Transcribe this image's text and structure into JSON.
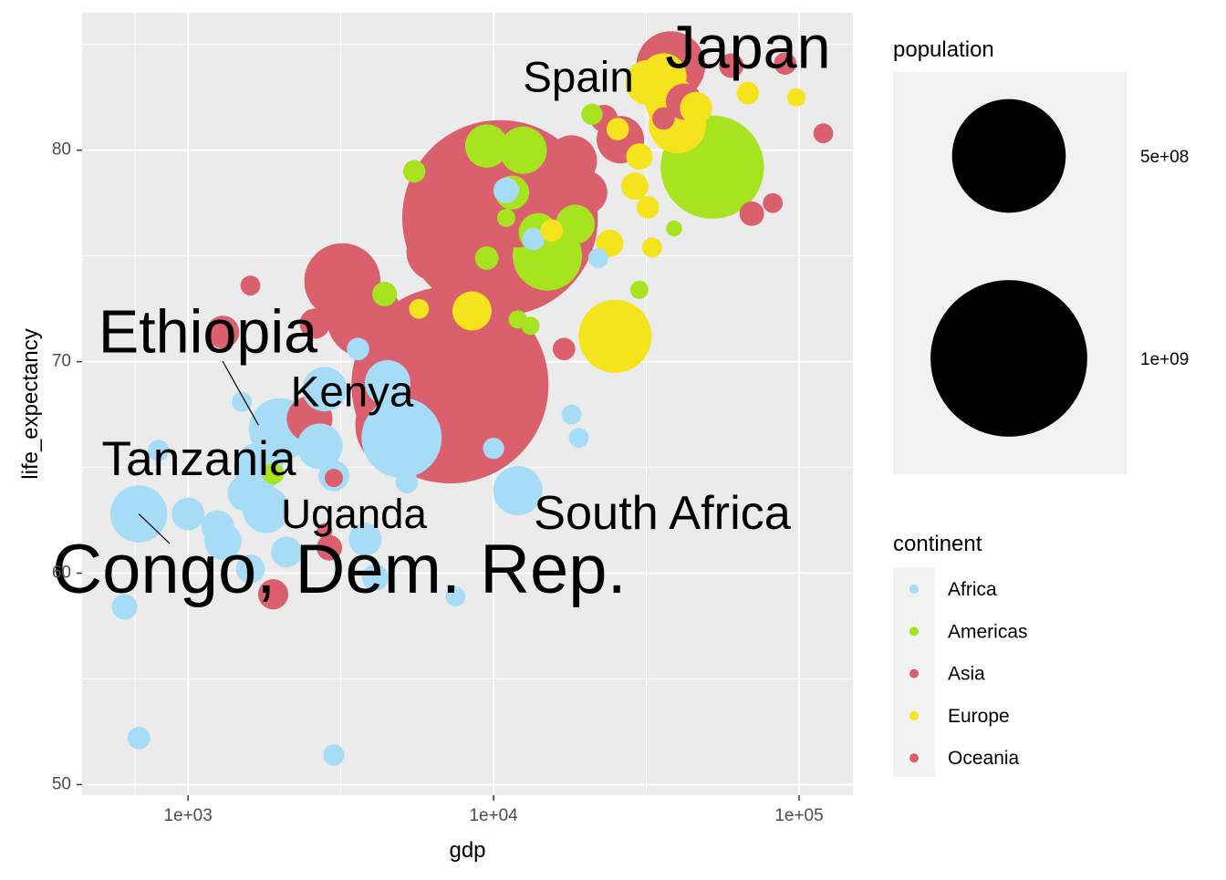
{
  "chart_data": {
    "type": "scatter",
    "title": "",
    "xlabel": "gdp",
    "ylabel": "life_expectancy",
    "x_scale": "log10",
    "xlim": [
      450,
      150000
    ],
    "ylim": [
      49.5,
      86.5
    ],
    "x_ticks": [
      {
        "value": 1000,
        "label": "1e+03"
      },
      {
        "value": 10000,
        "label": "1e+04"
      },
      {
        "value": 100000,
        "label": "1e+05"
      }
    ],
    "y_ticks": [
      {
        "value": 50,
        "label": "50"
      },
      {
        "value": 60,
        "label": "60"
      },
      {
        "value": 70,
        "label": "70"
      },
      {
        "value": 80,
        "label": "80"
      }
    ],
    "grid": true,
    "legend_position": "right",
    "colors": {
      "Africa": "#a6dcf5",
      "Americas": "#a7e41f",
      "Asia": "#d9606c",
      "Europe": "#f4e31d",
      "Oceania": "#d9606c"
    },
    "size_legend": {
      "title": "population",
      "entries": [
        {
          "population": 500000000,
          "label": "5e+08"
        },
        {
          "population": 1000000000,
          "label": "1e+09"
        }
      ]
    },
    "color_legend": {
      "title": "continent",
      "entries": [
        "Africa",
        "Americas",
        "Asia",
        "Europe",
        "Oceania"
      ]
    },
    "points": [
      {
        "continent": "Asia",
        "gdp": 7200,
        "life": 68.9,
        "pop": 1300000000
      },
      {
        "continent": "Asia",
        "gdp": 10500,
        "life": 76.8,
        "pop": 1280000000
      },
      {
        "continent": "Americas",
        "gdp": 52000,
        "life": 79.2,
        "pop": 320000000
      },
      {
        "continent": "Asia",
        "gdp": 5000,
        "life": 67.0,
        "pop": 250000000
      },
      {
        "continent": "Africa",
        "gdp": 5000,
        "life": 66.4,
        "pop": 180000000
      },
      {
        "continent": "Asia",
        "gdp": 3200,
        "life": 73.8,
        "pop": 160000000
      },
      {
        "continent": "Asia",
        "gdp": 38000,
        "life": 84.0,
        "pop": 126000000
      },
      {
        "continent": "Europe",
        "gdp": 25000,
        "life": 71.2,
        "pop": 145000000
      },
      {
        "continent": "Asia",
        "gdp": 3800,
        "life": 72.0,
        "pop": 160000000
      },
      {
        "continent": "Africa",
        "gdp": 2000,
        "life": 66.8,
        "pop": 99000000
      },
      {
        "continent": "Americas",
        "gdp": 15000,
        "life": 75.0,
        "pop": 128000000
      },
      {
        "continent": "Africa",
        "gdp": 690,
        "life": 62.8,
        "pop": 80000000
      },
      {
        "continent": "Asia",
        "gdp": 6500,
        "life": 75.2,
        "pop": 90000000
      },
      {
        "continent": "Asia",
        "gdp": 6000,
        "life": 70.5,
        "pop": 100000000
      },
      {
        "continent": "Europe",
        "gdp": 40000,
        "life": 81.2,
        "pop": 80000000
      },
      {
        "continent": "Africa",
        "gdp": 12000,
        "life": 63.9,
        "pop": 55000000
      },
      {
        "continent": "Americas",
        "gdp": 12500,
        "life": 80.0,
        "pop": 50000000
      },
      {
        "continent": "Europe",
        "gdp": 36000,
        "life": 83.5,
        "pop": 46000000
      },
      {
        "continent": "Asia",
        "gdp": 18000,
        "life": 79.5,
        "pop": 60000000
      },
      {
        "continent": "Asia",
        "gdp": 26000,
        "life": 80.5,
        "pop": 50000000
      },
      {
        "continent": "Asia",
        "gdp": 2500,
        "life": 67.3,
        "pop": 45000000
      },
      {
        "continent": "Africa",
        "gdp": 2800,
        "life": 68.7,
        "pop": 42000000
      },
      {
        "continent": "Africa",
        "gdp": 4500,
        "life": 69.0,
        "pop": 45000000
      },
      {
        "continent": "Asia",
        "gdp": 12000,
        "life": 76.5,
        "pop": 47000000
      },
      {
        "continent": "Africa",
        "gdp": 1800,
        "life": 63.0,
        "pop": 48000000
      },
      {
        "continent": "Africa",
        "gdp": 1700,
        "life": 65.0,
        "pop": 55000000
      },
      {
        "continent": "Africa",
        "gdp": 2700,
        "life": 66.0,
        "pop": 45000000
      },
      {
        "continent": "Asia",
        "gdp": 9000,
        "life": 79.2,
        "pop": 40000000
      },
      {
        "continent": "Europe",
        "gdp": 38000,
        "life": 82.3,
        "pop": 60000000
      },
      {
        "continent": "Europe",
        "gdp": 32000,
        "life": 83.2,
        "pop": 44000000
      },
      {
        "continent": "Americas",
        "gdp": 9500,
        "life": 80.2,
        "pop": 39000000
      },
      {
        "continent": "Americas",
        "gdp": 14000,
        "life": 76.1,
        "pop": 30000000
      },
      {
        "continent": "Americas",
        "gdp": 18500,
        "life": 76.5,
        "pop": 30000000
      },
      {
        "continent": "Americas",
        "gdp": 11500,
        "life": 78.0,
        "pop": 20000000
      },
      {
        "continent": "Europe",
        "gdp": 8500,
        "life": 72.4,
        "pop": 30000000
      },
      {
        "continent": "Asia",
        "gdp": 20000,
        "life": 78.0,
        "pop": 40000000
      },
      {
        "continent": "Asia",
        "gdp": 1300,
        "life": 71.4,
        "pop": 18000000
      },
      {
        "continent": "Asia",
        "gdp": 2600,
        "life": 71.8,
        "pop": 14000000
      },
      {
        "continent": "Africa",
        "gdp": 1300,
        "life": 61.5,
        "pop": 26000000
      },
      {
        "continent": "Africa",
        "gdp": 1000,
        "life": 62.8,
        "pop": 18000000
      },
      {
        "continent": "Africa",
        "gdp": 1250,
        "life": 62.2,
        "pop": 18000000
      },
      {
        "continent": "Africa",
        "gdp": 1550,
        "life": 63.8,
        "pop": 26000000
      },
      {
        "continent": "Africa",
        "gdp": 2100,
        "life": 61.0,
        "pop": 15000000
      },
      {
        "continent": "Asia",
        "gdp": 1900,
        "life": 59.0,
        "pop": 14000000
      },
      {
        "continent": "Africa",
        "gdp": 3800,
        "life": 61.6,
        "pop": 18000000
      },
      {
        "continent": "Africa",
        "gdp": 3000,
        "life": 64.6,
        "pop": 15000000
      },
      {
        "continent": "Asia",
        "gdp": 2900,
        "life": 61.2,
        "pop": 8000000
      },
      {
        "continent": "Africa",
        "gdp": 1600,
        "life": 60.2,
        "pop": 12000000
      },
      {
        "continent": "Africa",
        "gdp": 620,
        "life": 58.4,
        "pop": 8000000
      },
      {
        "continent": "Africa",
        "gdp": 690,
        "life": 52.2,
        "pop": 5000000
      },
      {
        "continent": "Africa",
        "gdp": 3000,
        "life": 51.4,
        "pop": 4000000
      },
      {
        "continent": "Africa",
        "gdp": 7500,
        "life": 58.9,
        "pop": 3000000
      },
      {
        "continent": "Africa",
        "gdp": 5200,
        "life": 64.3,
        "pop": 5000000
      },
      {
        "continent": "Africa",
        "gdp": 10000,
        "life": 65.9,
        "pop": 4000000
      },
      {
        "continent": "Africa",
        "gdp": 4100,
        "life": 59.8,
        "pop": 9000000
      },
      {
        "continent": "Africa",
        "gdp": 3600,
        "life": 70.6,
        "pop": 5000000
      },
      {
        "continent": "Africa",
        "gdp": 18000,
        "life": 67.5,
        "pop": 3000000
      },
      {
        "continent": "Africa",
        "gdp": 19000,
        "life": 66.4,
        "pop": 3000000
      },
      {
        "continent": "Africa",
        "gdp": 800,
        "life": 65.8,
        "pop": 4000000
      },
      {
        "continent": "Africa",
        "gdp": 1500,
        "life": 68.1,
        "pop": 3000000
      },
      {
        "continent": "Africa",
        "gdp": 11000,
        "life": 78.1,
        "pop": 8000000
      },
      {
        "continent": "Africa",
        "gdp": 13500,
        "life": 75.8,
        "pop": 5000000
      },
      {
        "continent": "Africa",
        "gdp": 22000,
        "life": 74.9,
        "pop": 3000000
      },
      {
        "continent": "Americas",
        "gdp": 5500,
        "life": 79.0,
        "pop": 5000000
      },
      {
        "continent": "Americas",
        "gdp": 4400,
        "life": 73.2,
        "pop": 7000000
      },
      {
        "continent": "Americas",
        "gdp": 9500,
        "life": 74.9,
        "pop": 6000000
      },
      {
        "continent": "Americas",
        "gdp": 11000,
        "life": 76.8,
        "pop": 2000000
      },
      {
        "continent": "Americas",
        "gdp": 12000,
        "life": 72.0,
        "pop": 2000000
      },
      {
        "continent": "Americas",
        "gdp": 13200,
        "life": 71.7,
        "pop": 2000000
      },
      {
        "continent": "Americas",
        "gdp": 30000,
        "life": 73.4,
        "pop": 2000000
      },
      {
        "continent": "Americas",
        "gdp": 21000,
        "life": 81.7,
        "pop": 4000000
      },
      {
        "continent": "Americas",
        "gdp": 39000,
        "life": 76.3,
        "pop": 1000000
      },
      {
        "continent": "Americas",
        "gdp": 1900,
        "life": 64.7,
        "pop": 4000000
      },
      {
        "continent": "Asia",
        "gdp": 1600,
        "life": 73.6,
        "pop": 3000000
      },
      {
        "continent": "Asia",
        "gdp": 17000,
        "life": 70.6,
        "pop": 5000000
      },
      {
        "continent": "Asia",
        "gdp": 120000,
        "life": 80.8,
        "pop": 3000000
      },
      {
        "continent": "Asia",
        "gdp": 82000,
        "life": 77.5,
        "pop": 3000000
      },
      {
        "continent": "Asia",
        "gdp": 70000,
        "life": 77.0,
        "pop": 7000000
      },
      {
        "continent": "Asia",
        "gdp": 60000,
        "life": 84.0,
        "pop": 7000000
      },
      {
        "continent": "Asia",
        "gdp": 90000,
        "life": 84.1,
        "pop": 5000000
      },
      {
        "continent": "Asia",
        "gdp": 3000,
        "life": 64.5,
        "pop": 2000000
      },
      {
        "continent": "Asia",
        "gdp": 23000,
        "life": 81.5,
        "pop": 10000000
      },
      {
        "continent": "Europe",
        "gdp": 98000,
        "life": 82.5,
        "pop": 2000000
      },
      {
        "continent": "Europe",
        "gdp": 68000,
        "life": 82.7,
        "pop": 5000000
      },
      {
        "continent": "Europe",
        "gdp": 30000,
        "life": 79.7,
        "pop": 9000000
      },
      {
        "continent": "Europe",
        "gdp": 24000,
        "life": 75.6,
        "pop": 10000000
      },
      {
        "continent": "Europe",
        "gdp": 32000,
        "life": 77.3,
        "pop": 5000000
      },
      {
        "continent": "Europe",
        "gdp": 15500,
        "life": 76.2,
        "pop": 5000000
      },
      {
        "continent": "Europe",
        "gdp": 29000,
        "life": 78.3,
        "pop": 10000000
      },
      {
        "continent": "Europe",
        "gdp": 46000,
        "life": 82.0,
        "pop": 17000000
      },
      {
        "continent": "Europe",
        "gdp": 33000,
        "life": 75.4,
        "pop": 3000000
      },
      {
        "continent": "Europe",
        "gdp": 25500,
        "life": 81.0,
        "pop": 5000000
      },
      {
        "continent": "Europe",
        "gdp": 5700,
        "life": 72.5,
        "pop": 3000000
      },
      {
        "continent": "Oceania",
        "gdp": 42000,
        "life": 82.3,
        "pop": 24000000
      },
      {
        "continent": "Oceania",
        "gdp": 36000,
        "life": 81.5,
        "pop": 5000000
      },
      {
        "continent": "Oceania",
        "gdp": 2800,
        "life": 62.0,
        "pop": 800000
      }
    ],
    "annotations": [
      {
        "text": "Japan",
        "gdp": 38000,
        "life": 84.0,
        "size": 70
      },
      {
        "text": "Spain",
        "gdp": 32000,
        "life": 83.2,
        "size": 50
      },
      {
        "text": "Ethiopia",
        "gdp": 1700,
        "life": 67.2,
        "size": 70
      },
      {
        "text": "Kenya",
        "gdp": 2900,
        "life": 66.0,
        "size": 50
      },
      {
        "text": "Tanzania",
        "gdp": 2500,
        "life": 64.8,
        "size": 56
      },
      {
        "text": "Uganda",
        "gdp": 1800,
        "life": 62.5,
        "size": 48
      },
      {
        "text": "South Africa",
        "gdp": 12000,
        "life": 63.9,
        "size": 55
      },
      {
        "text": "Congo, Dem. Rep.",
        "gdp": 690,
        "life": 62.8,
        "size": 80
      }
    ],
    "label_leader_lines": [
      {
        "from": "Ethiopia",
        "to_gdp": 1700,
        "to_life": 67.0
      },
      {
        "from": "Congo, Dem. Rep.",
        "to_gdp": 690,
        "to_life": 62.8
      }
    ]
  }
}
